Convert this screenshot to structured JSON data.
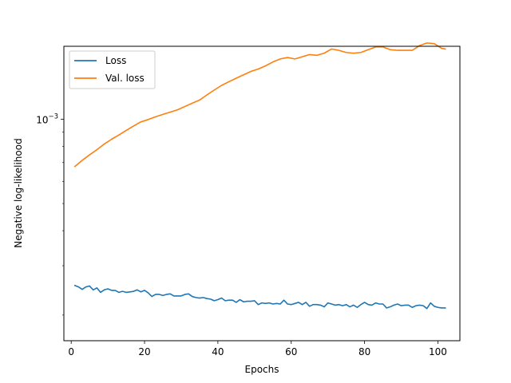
{
  "chart_data": {
    "type": "line",
    "title": "",
    "xlabel": "Epochs",
    "ylabel": "Negative log-likelihood",
    "yscale": "log",
    "xlim": [
      -2,
      106
    ],
    "ylim": [
      0.000162,
      0.00182
    ],
    "xticks": [
      0,
      20,
      40,
      60,
      80,
      100
    ],
    "yticks": [
      {
        "value": 0.001,
        "base": "10",
        "exponent": "−3"
      }
    ],
    "grid": false,
    "legend": {
      "position": "top-left"
    },
    "series": [
      {
        "name": "Loss",
        "color": "#1f77b4",
        "x": [
          1,
          2,
          3,
          4,
          5,
          6,
          7,
          8,
          9,
          10,
          11,
          12,
          13,
          14,
          15,
          16,
          17,
          18,
          19,
          20,
          21,
          22,
          23,
          24,
          25,
          26,
          27,
          28,
          29,
          30,
          31,
          32,
          33,
          34,
          35,
          36,
          37,
          38,
          39,
          40,
          41,
          42,
          43,
          44,
          45,
          46,
          47,
          48,
          49,
          50,
          51,
          52,
          53,
          54,
          55,
          56,
          57,
          58,
          59,
          60,
          61,
          62,
          63,
          64,
          65,
          66,
          67,
          68,
          69,
          70,
          71,
          72,
          73,
          74,
          75,
          76,
          77,
          78,
          79,
          80,
          81,
          82,
          83,
          84,
          85,
          86,
          87,
          88,
          89,
          90,
          91,
          92,
          93,
          94,
          95,
          96,
          97,
          98,
          99,
          100,
          101,
          102
        ],
        "y": [
          0.000255,
          0.000252,
          0.000247,
          0.000252,
          0.000254,
          0.000246,
          0.00025,
          0.000241,
          0.000246,
          0.000248,
          0.000245,
          0.000245,
          0.000241,
          0.000243,
          0.000241,
          0.000242,
          0.000243,
          0.000246,
          0.000242,
          0.000245,
          0.00024,
          0.000233,
          0.000237,
          0.000237,
          0.000235,
          0.000237,
          0.000238,
          0.000234,
          0.000234,
          0.000234,
          0.000237,
          0.000238,
          0.000233,
          0.000231,
          0.00023,
          0.000231,
          0.000229,
          0.000228,
          0.000225,
          0.000227,
          0.00023,
          0.000225,
          0.000226,
          0.000226,
          0.000222,
          0.000227,
          0.000223,
          0.000224,
          0.000224,
          0.000225,
          0.000218,
          0.000221,
          0.00022,
          0.000221,
          0.000219,
          0.00022,
          0.000219,
          0.000226,
          0.000219,
          0.000218,
          0.00022,
          0.000222,
          0.000218,
          0.000222,
          0.000215,
          0.000218,
          0.000218,
          0.000217,
          0.000214,
          0.000221,
          0.000219,
          0.000217,
          0.000218,
          0.000216,
          0.000218,
          0.000214,
          0.000217,
          0.000213,
          0.000218,
          0.000222,
          0.000218,
          0.000217,
          0.000221,
          0.000219,
          0.000219,
          0.000212,
          0.000214,
          0.000217,
          0.000219,
          0.000216,
          0.000217,
          0.000217,
          0.000213,
          0.000216,
          0.000217,
          0.000216,
          0.000211,
          0.000221,
          0.000215,
          0.000213,
          0.000212,
          0.000212
        ]
      },
      {
        "name": "Val. loss",
        "color": "#ff7f0e",
        "x": [
          1,
          3,
          5,
          7,
          9,
          11,
          13,
          15,
          17,
          19,
          21,
          23,
          25,
          27,
          29,
          31,
          33,
          35,
          37,
          39,
          41,
          43,
          45,
          47,
          49,
          51,
          53,
          55,
          57,
          59,
          61,
          63,
          65,
          67,
          69,
          71,
          73,
          75,
          77,
          79,
          81,
          83,
          85,
          87,
          89,
          91,
          93,
          95,
          97,
          99,
          101,
          102
        ],
        "y": [
          0.000678,
          0.000713,
          0.000746,
          0.000778,
          0.000815,
          0.000848,
          0.000878,
          0.000912,
          0.000945,
          0.000978,
          0.000997,
          0.00102,
          0.00104,
          0.00106,
          0.00108,
          0.00111,
          0.00114,
          0.00117,
          0.00122,
          0.00127,
          0.00132,
          0.00136,
          0.0014,
          0.00144,
          0.00148,
          0.00151,
          0.00155,
          0.0016,
          0.00164,
          0.00166,
          0.00164,
          0.00167,
          0.0017,
          0.00169,
          0.00172,
          0.00178,
          0.00176,
          0.00173,
          0.00172,
          0.00173,
          0.00177,
          0.00181,
          0.00181,
          0.00177,
          0.00176,
          0.00176,
          0.00176,
          0.00183,
          0.00187,
          0.00186,
          0.00179,
          0.00178
        ]
      }
    ]
  }
}
